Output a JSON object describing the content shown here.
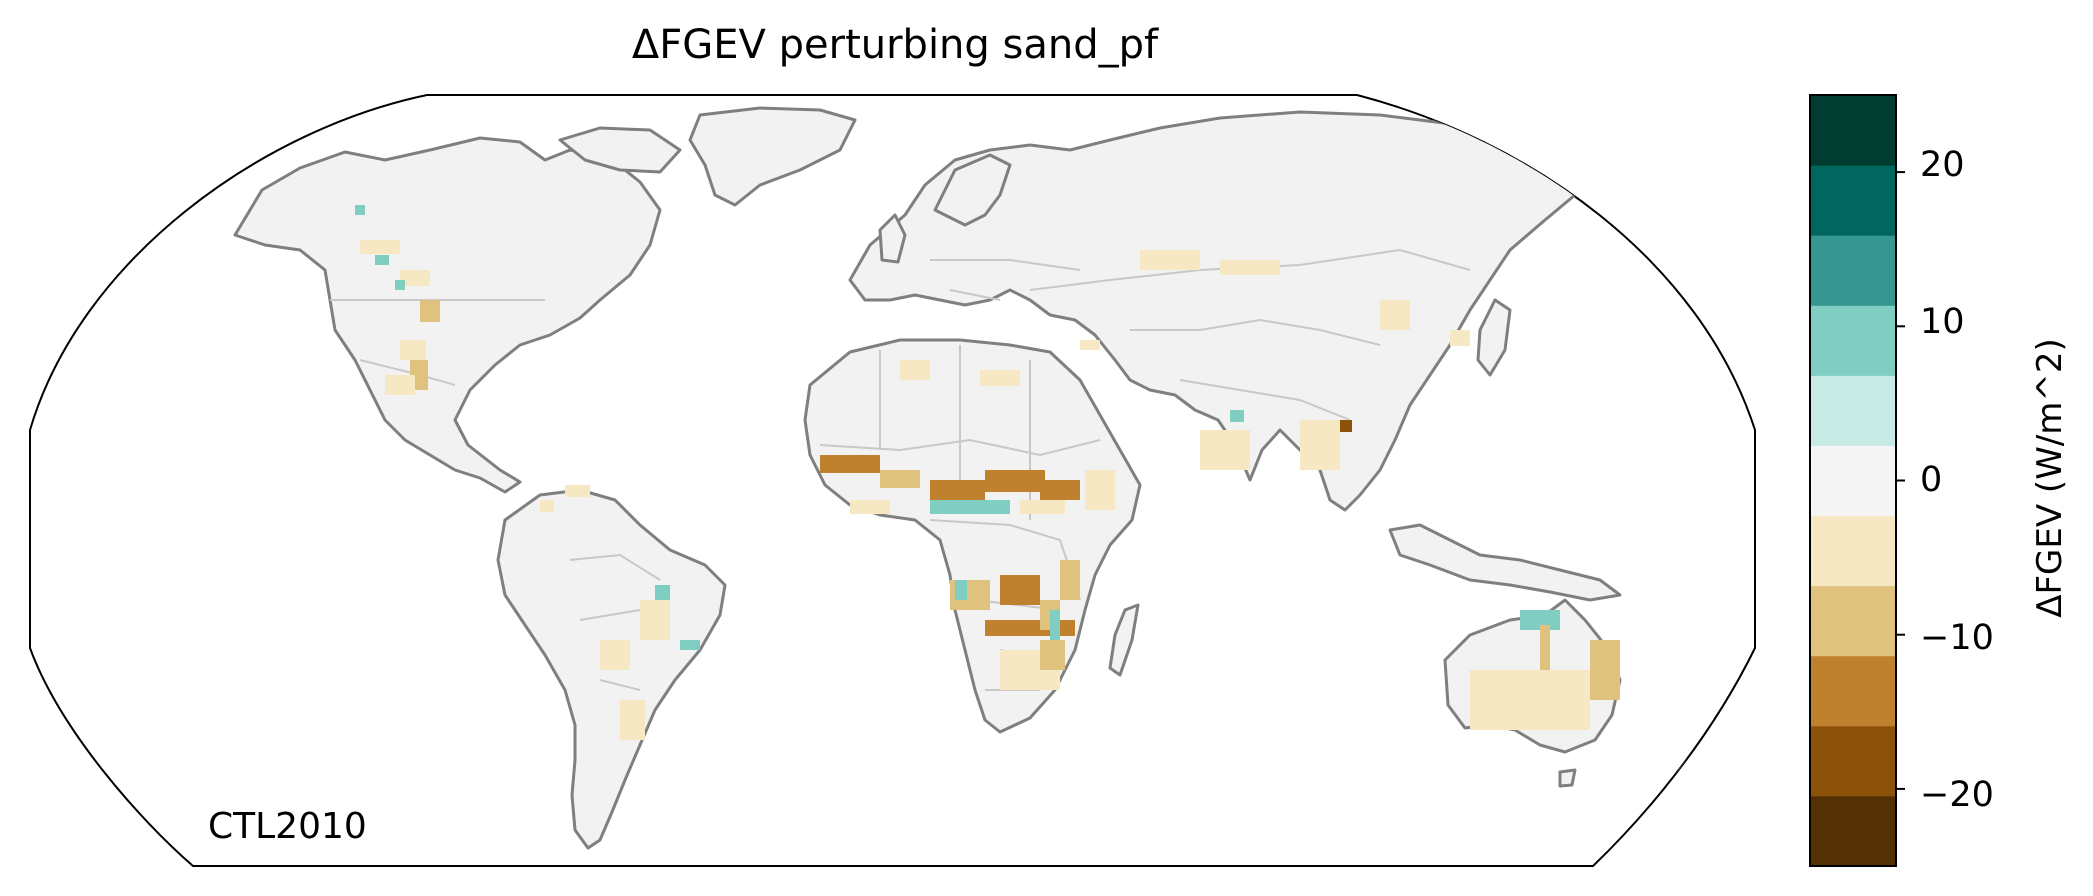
{
  "title": "ΔFGEV perturbing sand_pf",
  "run_label": "CTL2010",
  "colorbar": {
    "label": "ΔFGEV (W/m^2)",
    "ticks": [
      "20",
      "10",
      "0",
      "−10",
      "−20"
    ],
    "levels": [
      -25,
      -20,
      -15,
      -10,
      -5,
      0,
      5,
      10,
      15,
      20,
      25
    ],
    "colors": [
      "#543005",
      "#8c510a",
      "#bf812d",
      "#dfc27d",
      "#f6e8c3",
      "#f5f5f5",
      "#c7eae5",
      "#80cdc1",
      "#35978f",
      "#01665e",
      "#003c30"
    ]
  },
  "colors": {
    "coastline": "#7f7f7f",
    "borders": "#c8c8c8",
    "land_background": "#f2f2f2",
    "frame": "#000000"
  }
}
